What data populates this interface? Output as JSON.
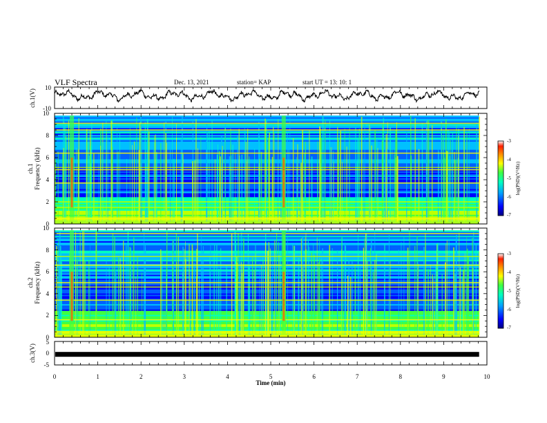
{
  "header": {
    "title": "VLF Spectra",
    "date": "Dec. 13, 2021",
    "station": "station= KAP",
    "start": "start  UT =   13: 10: 1"
  },
  "colors": {
    "trace": "#000000",
    "colormap": [
      "#000080",
      "#0000ff",
      "#0060ff",
      "#00c0ff",
      "#00ffc0",
      "#40ff40",
      "#c0ff00",
      "#ffff00",
      "#ff9000",
      "#ff2000",
      "#ffffff"
    ]
  },
  "chart_data": [
    {
      "type": "line",
      "panel": "ch1-waveform",
      "ylabel": "ch.1(V)",
      "ylim": [
        -10,
        10
      ],
      "yticks": [
        "10",
        "-10"
      ],
      "xlim": [
        0,
        10
      ],
      "note_pattern": "noisy waveform oscillating roughly between -6 and 8 V"
    },
    {
      "type": "heatmap",
      "panel": "ch1-spectrogram",
      "ylabel": "ch.1",
      "ylabel2": "Frequency (kHz)",
      "ylim": [
        0,
        10
      ],
      "yticks": [
        "0",
        "2",
        "4",
        "6",
        "8",
        "10"
      ],
      "xlim": [
        0,
        10
      ],
      "colorbar": {
        "label": "log(PSD)(V²/Hz)",
        "range": [
          -7,
          -3
        ],
        "ticks": [
          "-3",
          "-4",
          "-5",
          "-6",
          "-7"
        ]
      },
      "bright_columns_min": [
        0.4,
        5.3
      ],
      "strong_bands_khz": [
        0.5,
        1.5,
        2.0,
        3.7,
        4.9,
        5.1,
        6.4,
        8.5,
        9.1
      ]
    },
    {
      "type": "heatmap",
      "panel": "ch2-spectrogram",
      "ylabel": "ch.2",
      "ylabel2": "Frequency (kHz)",
      "ylim": [
        0,
        10
      ],
      "yticks": [
        "0",
        "2",
        "4",
        "6",
        "8",
        "10"
      ],
      "xlim": [
        0,
        10
      ],
      "colorbar": {
        "label": "log(PSD)(V²/Hz)",
        "range": [
          -7,
          -3
        ],
        "ticks": [
          "-3",
          "-4",
          "-5",
          "-6",
          "-7"
        ]
      },
      "bright_columns_min": [
        0.4,
        5.3
      ],
      "strong_bands_khz": [
        0.5,
        1.6,
        3.4,
        4.6,
        5.0,
        6.6,
        7.4,
        9.5
      ]
    },
    {
      "type": "line",
      "panel": "ch3-waveform",
      "ylabel": "ch.3(V)",
      "ylim": [
        -5,
        5
      ],
      "yticks": [
        "5",
        "0",
        "-5"
      ],
      "xlim": [
        0,
        10
      ],
      "level": -0.5,
      "xlabel": "Time (min)",
      "xticks": [
        "0",
        "1",
        "2",
        "3",
        "4",
        "5",
        "6",
        "7",
        "8",
        "9",
        "10"
      ]
    }
  ]
}
